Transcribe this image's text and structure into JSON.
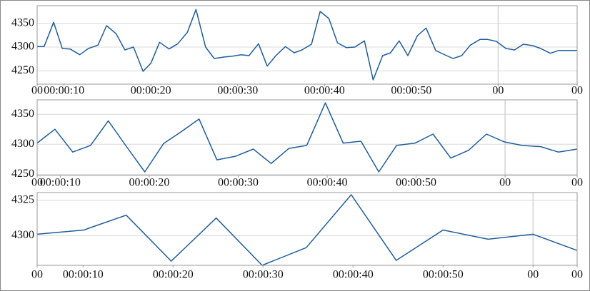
{
  "chart_data": [
    {
      "type": "line",
      "color": "#1f5d9c",
      "grid": true,
      "vgrid": [
        60
      ],
      "xlim": [
        6.9,
        69.1
      ],
      "ylim": [
        4222,
        4387
      ],
      "xticks": [
        {
          "value": 6.9,
          "label": "00"
        },
        {
          "value": 10,
          "label": "00:00:10"
        },
        {
          "value": 20,
          "label": "00:00:20"
        },
        {
          "value": 30,
          "label": "00:00:30"
        },
        {
          "value": 40,
          "label": "00:00:40"
        },
        {
          "value": 50,
          "label": "00:00:50"
        },
        {
          "value": 60,
          "label": "00"
        },
        {
          "value": 69.1,
          "label": "00"
        }
      ],
      "yticks": [
        4250,
        4300,
        4350
      ],
      "x": [
        6.9,
        7.7,
        8.8,
        9.8,
        10.7,
        11.8,
        12.8,
        13.9,
        14.9,
        16.0,
        17.0,
        18.0,
        19.1,
        20.0,
        21.0,
        22.1,
        23.1,
        24.2,
        25.2,
        26.3,
        27.3,
        28.4,
        29.4,
        30.4,
        31.3,
        32.4,
        33.4,
        34.4,
        35.5,
        36.5,
        37.4,
        38.5,
        39.5,
        40.5,
        41.5,
        42.5,
        43.5,
        44.6,
        45.6,
        46.7,
        47.6,
        48.6,
        49.6,
        50.7,
        51.7,
        52.8,
        53.7,
        54.8,
        55.8,
        56.8,
        57.9,
        58.8,
        59.8,
        60.9,
        61.9,
        62.9,
        64.0,
        64.9,
        66.0,
        67.0,
        68.0,
        69.1
      ],
      "values": [
        4301,
        4301,
        4352,
        4297,
        4296,
        4284,
        4297,
        4304,
        4345,
        4328,
        4294,
        4300,
        4249,
        4266,
        4310,
        4296,
        4307,
        4331,
        4379,
        4300,
        4276,
        4279,
        4281,
        4284,
        4282,
        4307,
        4260,
        4282,
        4301,
        4288,
        4294,
        4306,
        4375,
        4360,
        4309,
        4299,
        4300,
        4313,
        4231,
        4282,
        4288,
        4313,
        4282,
        4324,
        4340,
        4293,
        4285,
        4276,
        4282,
        4304,
        4316,
        4316,
        4312,
        4297,
        4294,
        4306,
        4303,
        4297,
        4287,
        4293,
        4293,
        4293
      ]
    },
    {
      "type": "line",
      "color": "#1f5d9c",
      "grid": true,
      "vgrid": [
        60
      ],
      "xlim": [
        7.4,
        68.1
      ],
      "ylim": [
        4248,
        4374
      ],
      "xticks": [
        {
          "value": 7.4,
          "label": "00"
        },
        {
          "value": 10,
          "label": "00:00:10"
        },
        {
          "value": 20,
          "label": "00:00:20"
        },
        {
          "value": 30,
          "label": "00:00:30"
        },
        {
          "value": 40,
          "label": "00:00:40"
        },
        {
          "value": 50,
          "label": "00:00:50"
        },
        {
          "value": 60,
          "label": "00"
        },
        {
          "value": 68.1,
          "label": "00"
        }
      ],
      "yticks": [
        4250,
        4300,
        4350
      ],
      "x": [
        7.4,
        9.4,
        11.4,
        13.4,
        15.4,
        17.5,
        19.5,
        21.6,
        23.6,
        25.6,
        27.6,
        29.7,
        31.7,
        33.7,
        35.7,
        37.7,
        39.8,
        41.8,
        43.8,
        45.8,
        47.8,
        49.9,
        51.9,
        53.9,
        55.9,
        57.9,
        59.9,
        61.9,
        64.0,
        66.0,
        68.1
      ],
      "values": [
        4302,
        4325,
        4287,
        4298,
        4339,
        4295,
        4254,
        4301,
        4321,
        4342,
        4274,
        4280,
        4292,
        4268,
        4293,
        4298,
        4369,
        4302,
        4305,
        4254,
        4298,
        4302,
        4317,
        4277,
        4290,
        4317,
        4304,
        4298,
        4296,
        4287,
        4292
      ]
    },
    {
      "type": "line",
      "color": "#1f5d9c",
      "grid": true,
      "vgrid": [
        60
      ],
      "xlim": [
        4.9,
        64.9
      ],
      "ylim": [
        4279,
        4330.5
      ],
      "xticks": [
        {
          "value": 4.9,
          "label": "00"
        },
        {
          "value": 10,
          "label": "00:00:10"
        },
        {
          "value": 20,
          "label": "00:00:20"
        },
        {
          "value": 30,
          "label": "00:00:30"
        },
        {
          "value": 40,
          "label": "00:00:40"
        },
        {
          "value": 50,
          "label": "00:00:50"
        },
        {
          "value": 60,
          "label": "00"
        },
        {
          "value": 64.9,
          "label": "00"
        }
      ],
      "yticks": [
        4300,
        4325
      ],
      "x": [
        4.9,
        10.1,
        11.2,
        14.8,
        19.8,
        24.8,
        29.9,
        34.8,
        39.8,
        44.8,
        50.0,
        55.0,
        60.0,
        64.9
      ],
      "values": [
        4301,
        4304,
        4306.5,
        4314.5,
        4282,
        4312.5,
        4279,
        4291.5,
        4329,
        4282.5,
        4304,
        4297.5,
        4301,
        4289.5
      ]
    }
  ]
}
